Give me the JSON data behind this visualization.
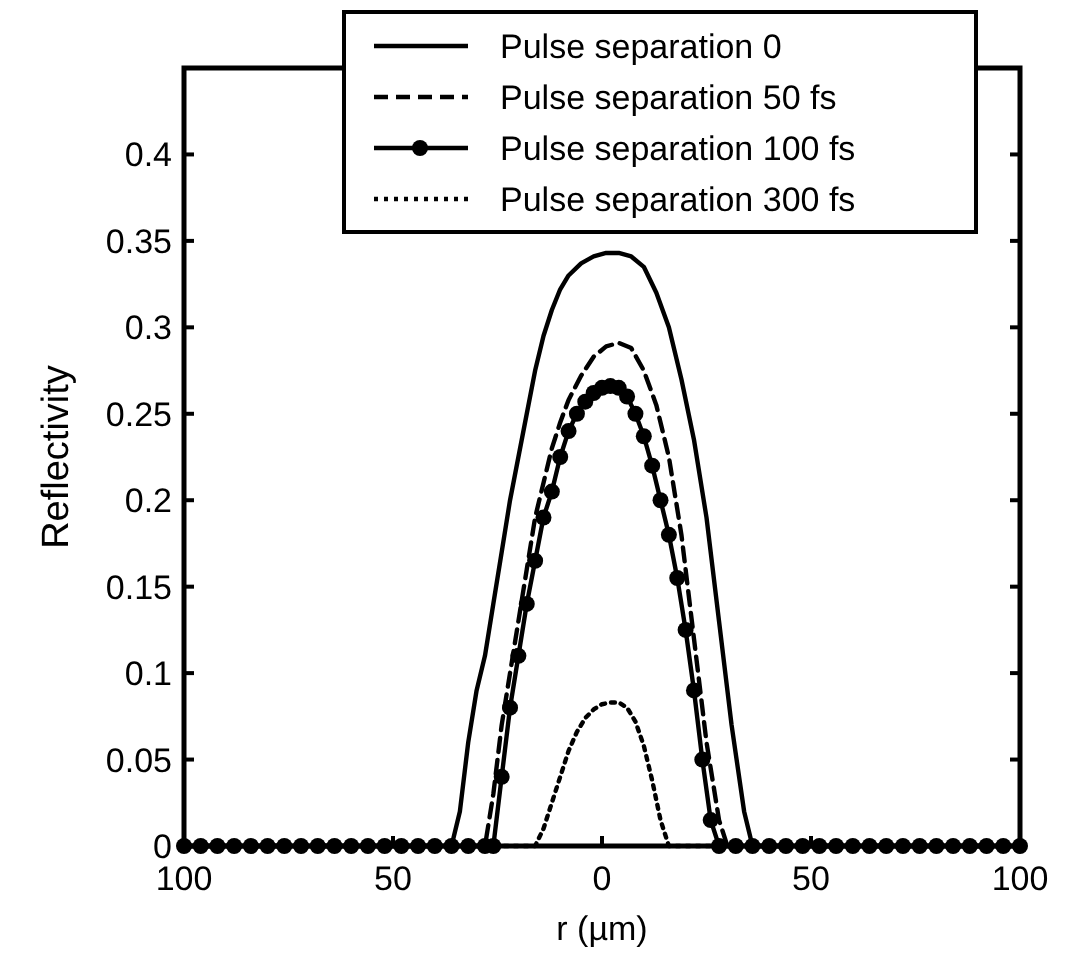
{
  "chart_data": {
    "type": "line",
    "xlabel": "r (µm)",
    "ylabel": "Reflectivity",
    "xlim": [
      -100,
      100
    ],
    "ylim": [
      0,
      0.45
    ],
    "xticks": [
      {
        "value": -100,
        "label": "100"
      },
      {
        "value": -50,
        "label": "50"
      },
      0,
      50,
      100
    ],
    "yticks": [
      0,
      0.05,
      0.1,
      0.15,
      0.2,
      0.25,
      0.3,
      0.35,
      0.4
    ],
    "grid": false,
    "legend": "top right",
    "series": [
      {
        "name": "Pulse separation 0",
        "color": "#000000",
        "line_style": "solid",
        "marker": "none",
        "x": [
          -100,
          -36,
          -34,
          -32,
          -30,
          -28,
          -26,
          -24,
          -22,
          -20,
          -18,
          -16,
          -14,
          -12,
          -10,
          -8,
          -5,
          -2,
          1,
          4,
          7,
          10,
          13,
          16,
          19,
          22,
          25,
          28,
          31,
          34,
          36,
          100
        ],
        "values": [
          0,
          0,
          0.02,
          0.06,
          0.09,
          0.11,
          0.14,
          0.17,
          0.2,
          0.225,
          0.25,
          0.275,
          0.295,
          0.31,
          0.322,
          0.33,
          0.337,
          0.341,
          0.343,
          0.343,
          0.341,
          0.335,
          0.32,
          0.3,
          0.27,
          0.235,
          0.19,
          0.13,
          0.07,
          0.02,
          0,
          0
        ]
      },
      {
        "name": "Pulse separation 50 fs",
        "color": "#000000",
        "line_style": "dashed",
        "marker": "none",
        "x": [
          -100,
          -28,
          -26,
          -24,
          -22,
          -20,
          -18,
          -16,
          -14,
          -12,
          -10,
          -8,
          -5,
          -2,
          1,
          4,
          7,
          10,
          13,
          16,
          19,
          22,
          25,
          28,
          30,
          100
        ],
        "values": [
          0,
          0,
          0.03,
          0.07,
          0.1,
          0.13,
          0.16,
          0.19,
          0.21,
          0.23,
          0.245,
          0.258,
          0.272,
          0.283,
          0.289,
          0.291,
          0.288,
          0.275,
          0.255,
          0.225,
          0.18,
          0.12,
          0.06,
          0.015,
          0,
          0
        ]
      },
      {
        "name": "Pulse separation 100 fs",
        "color": "#000000",
        "line_style": "solid",
        "marker": "circle",
        "x": [
          -100,
          -96,
          -92,
          -88,
          -84,
          -80,
          -76,
          -72,
          -68,
          -64,
          -60,
          -56,
          -52,
          -48,
          -44,
          -40,
          -36,
          -32,
          -28,
          -26,
          -24,
          -22,
          -20,
          -18,
          -16,
          -14,
          -12,
          -10,
          -8,
          -6,
          -4,
          -2,
          0,
          2,
          4,
          6,
          8,
          10,
          12,
          14,
          16,
          18,
          20,
          22,
          24,
          26,
          28,
          32,
          36,
          40,
          44,
          48,
          52,
          56,
          60,
          64,
          68,
          72,
          76,
          80,
          84,
          88,
          92,
          96,
          100
        ],
        "values": [
          0,
          0,
          0,
          0,
          0,
          0,
          0,
          0,
          0,
          0,
          0,
          0,
          0,
          0,
          0,
          0,
          0,
          0,
          0,
          0,
          0.04,
          0.08,
          0.11,
          0.14,
          0.165,
          0.19,
          0.205,
          0.225,
          0.24,
          0.25,
          0.257,
          0.262,
          0.265,
          0.266,
          0.265,
          0.26,
          0.25,
          0.237,
          0.22,
          0.2,
          0.18,
          0.155,
          0.125,
          0.09,
          0.05,
          0.015,
          0,
          0,
          0,
          0,
          0,
          0,
          0,
          0,
          0,
          0,
          0,
          0,
          0,
          0,
          0,
          0,
          0,
          0,
          0
        ]
      },
      {
        "name": "Pulse separation 300 fs",
        "color": "#000000",
        "line_style": "dotted",
        "marker": "none",
        "x": [
          -100,
          -16,
          -14,
          -12,
          -10,
          -8,
          -6,
          -4,
          -2,
          0,
          2,
          4,
          6,
          8,
          10,
          12,
          14,
          16,
          100
        ],
        "values": [
          0,
          0,
          0.01,
          0.025,
          0.04,
          0.055,
          0.066,
          0.074,
          0.079,
          0.082,
          0.083,
          0.083,
          0.08,
          0.072,
          0.058,
          0.038,
          0.015,
          0,
          0
        ]
      }
    ]
  }
}
